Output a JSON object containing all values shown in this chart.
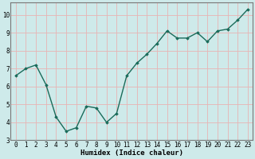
{
  "x": [
    0,
    1,
    2,
    3,
    4,
    5,
    6,
    7,
    8,
    9,
    10,
    11,
    12,
    13,
    14,
    15,
    16,
    17,
    18,
    19,
    20,
    21,
    22,
    23
  ],
  "y": [
    6.6,
    7.0,
    7.2,
    6.1,
    4.3,
    3.5,
    3.7,
    4.9,
    4.8,
    4.0,
    4.5,
    6.6,
    7.3,
    7.8,
    8.4,
    9.1,
    8.7,
    8.7,
    9.0,
    8.5,
    9.1,
    9.2,
    9.7,
    10.3
  ],
  "line_color": "#1a6b5a",
  "marker": "D",
  "marker_size": 1.8,
  "linewidth": 1.0,
  "xlim": [
    -0.5,
    23.5
  ],
  "ylim": [
    3,
    10.7
  ],
  "yticks": [
    3,
    4,
    5,
    6,
    7,
    8,
    9,
    10
  ],
  "xtick_labels": [
    "0",
    "1",
    "2",
    "3",
    "4",
    "5",
    "6",
    "7",
    "8",
    "9",
    "10",
    "11",
    "12",
    "13",
    "14",
    "15",
    "16",
    "17",
    "18",
    "19",
    "20",
    "21",
    "22",
    "23"
  ],
  "xlabel": "Humidex (Indice chaleur)",
  "background_color": "#ceeaea",
  "grid_color": "#e8b4b4",
  "xlabel_fontsize": 6.5,
  "tick_fontsize": 5.5,
  "title": ""
}
